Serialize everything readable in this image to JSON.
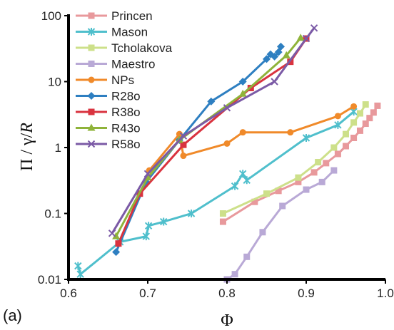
{
  "panel_label": "(a)",
  "chart_data": {
    "type": "line",
    "xlabel": "Φ",
    "ylabel_parts": [
      "Π / γ/",
      "R"
    ],
    "xlim": [
      0.6,
      1.0
    ],
    "ylim": [
      0.01,
      100
    ],
    "yscale": "log",
    "x_ticks": [
      "0.6",
      "0.7",
      "0.8",
      "0.9",
      "1.0"
    ],
    "y_ticks": [
      "0.01",
      "0.1",
      "1",
      "10",
      "100"
    ],
    "legend_position": "top-left",
    "grid": false,
    "series": [
      {
        "name": "Princen",
        "color": "#e8999c",
        "marker": "square",
        "x": [
          0.795,
          0.835,
          0.865,
          0.89,
          0.91,
          0.925,
          0.94,
          0.95,
          0.96,
          0.968,
          0.975,
          0.98,
          0.985,
          0.99
        ],
        "y": [
          0.075,
          0.15,
          0.22,
          0.3,
          0.42,
          0.58,
          0.8,
          1.05,
          1.4,
          1.8,
          2.3,
          2.8,
          3.4,
          4.3
        ]
      },
      {
        "name": "Mason",
        "color": "#4fbfcc",
        "marker": "asterisk",
        "x": [
          0.612,
          0.615,
          0.665,
          0.698,
          0.701,
          0.72,
          0.755,
          0.81,
          0.82,
          0.825,
          0.9,
          0.94,
          0.96
        ],
        "y": [
          0.016,
          0.012,
          0.037,
          0.045,
          0.065,
          0.075,
          0.1,
          0.26,
          0.4,
          0.32,
          1.4,
          2.2,
          3.5
        ]
      },
      {
        "name": "Tcholakova",
        "color": "#cde08a",
        "marker": "square",
        "x": [
          0.795,
          0.85,
          0.89,
          0.915,
          0.935,
          0.95,
          0.96,
          0.968,
          0.975
        ],
        "y": [
          0.1,
          0.2,
          0.35,
          0.6,
          1.0,
          1.6,
          2.4,
          3.3,
          4.5
        ]
      },
      {
        "name": "Maestro",
        "color": "#b9a9d6",
        "marker": "square",
        "x": [
          0.8,
          0.81,
          0.825,
          0.845,
          0.87,
          0.9,
          0.92,
          0.935
        ],
        "y": [
          0.01,
          0.012,
          0.022,
          0.052,
          0.13,
          0.23,
          0.3,
          0.45
        ]
      },
      {
        "name": "NPs",
        "color": "#f08a2a",
        "marker": "circle",
        "x": [
          0.702,
          0.74,
          0.745,
          0.8,
          0.82,
          0.88,
          0.94,
          0.96
        ],
        "y": [
          0.45,
          1.6,
          0.75,
          1.15,
          1.7,
          1.7,
          3.0,
          4.2
        ]
      },
      {
        "name": "R28o",
        "color": "#2e7fc1",
        "marker": "diamond",
        "x": [
          0.66,
          0.698,
          0.74,
          0.78,
          0.82,
          0.85,
          0.855,
          0.86,
          0.865,
          0.868
        ],
        "y": [
          0.026,
          0.3,
          1.3,
          5.0,
          10.0,
          22.0,
          26.0,
          24.0,
          28.0,
          34.0
        ]
      },
      {
        "name": "R38o",
        "color": "#d9333f",
        "marker": "square",
        "x": [
          0.663,
          0.69,
          0.745,
          0.83,
          0.88,
          0.9
        ],
        "y": [
          0.035,
          0.2,
          1.1,
          8.0,
          20.0,
          45.0
        ]
      },
      {
        "name": "R43o",
        "color": "#8fb33a",
        "marker": "triangle",
        "x": [
          0.66,
          0.7,
          0.74,
          0.82,
          0.875,
          0.893
        ],
        "y": [
          0.045,
          0.35,
          1.3,
          6.5,
          25.0,
          46.0
        ]
      },
      {
        "name": "R58o",
        "color": "#7b5aa6",
        "marker": "x",
        "x": [
          0.655,
          0.7,
          0.745,
          0.8,
          0.86,
          0.9,
          0.91
        ],
        "y": [
          0.05,
          0.4,
          1.5,
          4.0,
          10.0,
          45.0,
          65.0
        ]
      }
    ]
  }
}
